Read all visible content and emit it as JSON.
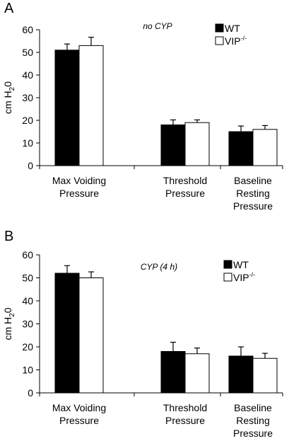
{
  "chart_data": [
    {
      "panel_label": "A",
      "type": "bar",
      "annotation": "no CYP",
      "ylabel_main": "cm H",
      "ylabel_sub": "2",
      "ylabel_tail": "0",
      "ylim": [
        0,
        60
      ],
      "yticks": [
        "0",
        "10",
        "20",
        "30",
        "40",
        "50",
        "60"
      ],
      "categories": [
        [
          "Max Voiding",
          "Pressure"
        ],
        [
          "Threshold",
          "Pressure"
        ],
        [
          "Baseline",
          "Resting",
          "Pressure"
        ]
      ],
      "series": [
        {
          "name": "WT",
          "name_sup": "",
          "color": "#000000",
          "values": [
            51,
            18,
            15
          ],
          "errors": [
            2.7,
            2.2,
            2.5
          ]
        },
        {
          "name": "VIP",
          "name_sup": "-/-",
          "color": "#ffffff",
          "values": [
            53,
            19,
            16
          ],
          "errors": [
            3.7,
            1.2,
            1.7
          ]
        }
      ],
      "legend": "top-right"
    },
    {
      "panel_label": "B",
      "type": "bar",
      "annotation": "CYP (4 h)",
      "ylabel_main": "cm H",
      "ylabel_sub": "2",
      "ylabel_tail": "0",
      "ylim": [
        0,
        60
      ],
      "yticks": [
        "0",
        "10",
        "20",
        "30",
        "40",
        "50",
        "60"
      ],
      "categories": [
        [
          "Max Voiding",
          "Pressure"
        ],
        [
          "Threshold",
          "Pressure"
        ],
        [
          "Baseline",
          "Resting",
          "Pressure"
        ]
      ],
      "series": [
        {
          "name": "WT",
          "name_sup": "",
          "color": "#000000",
          "values": [
            52,
            18,
            16
          ],
          "errors": [
            3.3,
            4,
            4
          ]
        },
        {
          "name": "VIP",
          "name_sup": "-/-",
          "color": "#ffffff",
          "values": [
            50,
            17,
            15
          ],
          "errors": [
            2.6,
            2.5,
            2.2
          ]
        }
      ],
      "legend": "top-right"
    }
  ]
}
